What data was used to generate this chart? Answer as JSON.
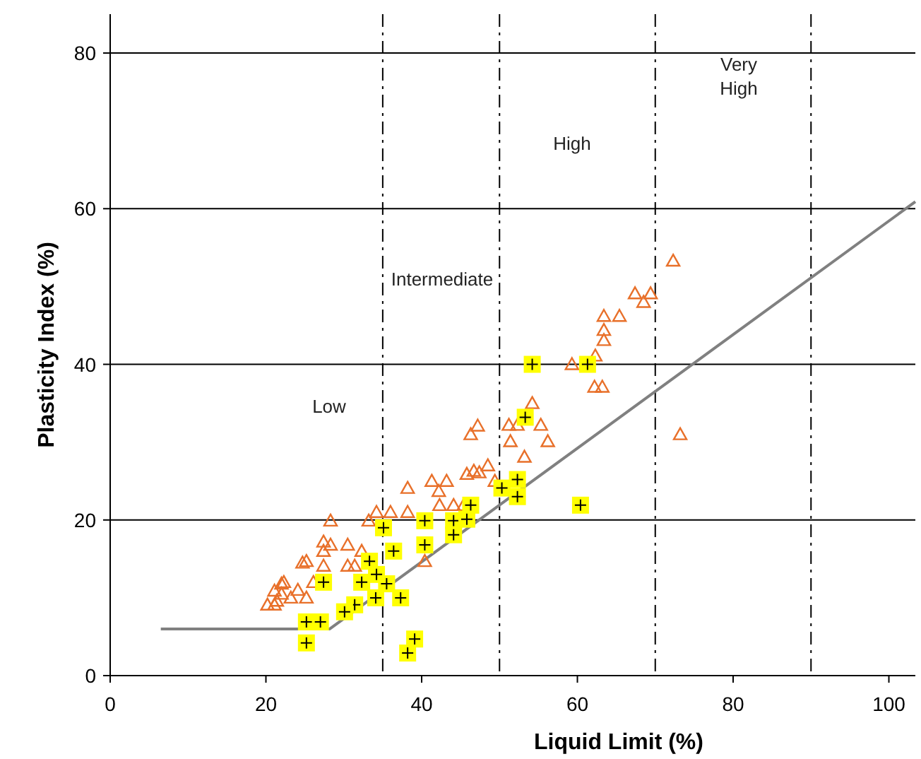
{
  "chart_data": {
    "type": "scatter",
    "xlabel": "Liquid Limit (%)",
    "ylabel": "Plasticity Index (%)",
    "xlim": [
      0,
      103.4
    ],
    "ylim": [
      0,
      85
    ],
    "xticks": [
      0,
      20,
      40,
      60,
      80,
      100
    ],
    "yticks": [
      0,
      20,
      40,
      60,
      80
    ],
    "grid": "y",
    "series": [
      {
        "type": "line",
        "color": "#808080",
        "marker": "none",
        "line_style": "solid",
        "x": [
          6.5,
          28.2,
          103.4
        ],
        "values": [
          6,
          6,
          60.9
        ]
      },
      {
        "color": "#e8702a",
        "marker": "triangle",
        "x": [
          47.2,
          46.3,
          48.5,
          45.8,
          46.7,
          47.4,
          38.2,
          41.3,
          43.2,
          42.2,
          44.1,
          45.4,
          42.3,
          34.2,
          33.2,
          36,
          38.2,
          28.3,
          40.4,
          27.4,
          28.3,
          30.5,
          27.4,
          32.3,
          24.7,
          25.2,
          27.4,
          30.5,
          31.4,
          22,
          22.3,
          24.1,
          21.1,
          23.2,
          25.2,
          26.1,
          21.4,
          20.2,
          21.1,
          22,
          72.3,
          67.4,
          69.4,
          68.5,
          63.4,
          65.4,
          63.4,
          63.4,
          62.3,
          59.3,
          62.2,
          63.2,
          73.2,
          54.2,
          51.2,
          52.3,
          55.3,
          51.4,
          56.2,
          53.2,
          49.4
        ],
        "values": [
          32.1,
          31,
          27,
          25.9,
          26.3,
          26.1,
          24.1,
          25,
          25,
          23.7,
          21.9,
          21.9,
          21.9,
          21,
          19.9,
          21,
          21,
          19.9,
          14.7,
          17.2,
          16.8,
          16.8,
          16,
          16,
          14.5,
          14.7,
          14.1,
          14.1,
          14.1,
          11.8,
          12,
          11,
          10.9,
          10,
          10,
          12,
          9.6,
          9.1,
          9.1,
          10.5,
          53.3,
          49.1,
          49.1,
          48,
          46.2,
          46.2,
          44.4,
          43.1,
          41.1,
          40,
          37.1,
          37.1,
          31,
          35,
          32.2,
          32.2,
          32.2,
          30.1,
          30.1,
          28.1,
          25
        ]
      },
      {
        "color": "#ffff00",
        "marker": "square",
        "x": [
          46.3,
          40.4,
          44.1,
          45.8,
          44.1,
          35.1,
          36.4,
          40.4,
          33.3,
          34.2,
          32.3,
          27.4,
          35.5,
          31.4,
          30.1,
          34.1,
          37.3,
          25.2,
          27,
          25.2,
          39.1,
          38.2,
          54.2,
          61.3,
          53.3,
          52.3,
          52.3,
          50.3,
          60.4
        ],
        "values": [
          21.9,
          19.9,
          19.9,
          20.1,
          18.1,
          19,
          16,
          16.8,
          14.7,
          13,
          12,
          12,
          11.8,
          9.1,
          8.2,
          10,
          10,
          6.9,
          6.9,
          4.2,
          4.7,
          2.9,
          40,
          40,
          33.2,
          25.2,
          23,
          24.1,
          21.9
        ]
      }
    ],
    "ref_lines": [
      {
        "axis": "x",
        "value": 35,
        "line_style": "dashed",
        "color": "#000000"
      },
      {
        "axis": "x",
        "value": 50,
        "line_style": "dashed",
        "color": "#000000"
      },
      {
        "axis": "x",
        "value": 70,
        "line_style": "dashed",
        "color": "#000000"
      },
      {
        "axis": "x",
        "value": 90,
        "line_style": "dashed",
        "color": "#000000"
      }
    ],
    "annotations": [
      "Low",
      "Intermediate",
      "High",
      "Very High"
    ]
  }
}
